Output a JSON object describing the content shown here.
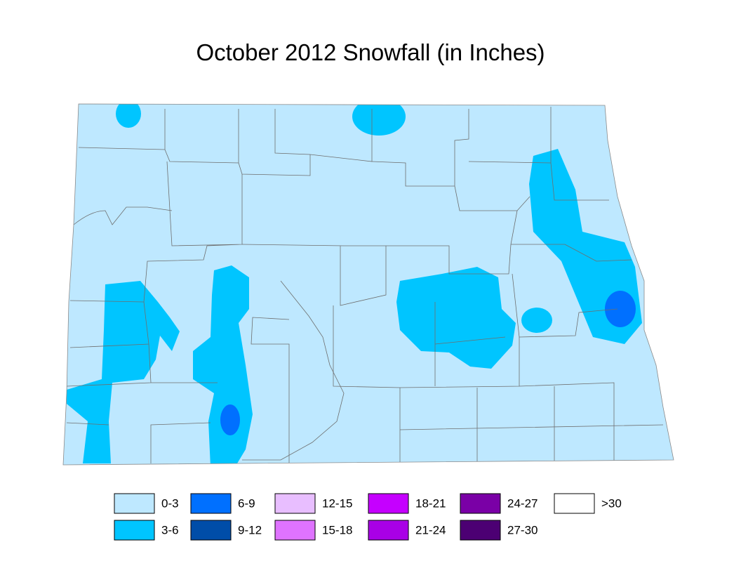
{
  "title": "October 2012 Snowfall (in Inches)",
  "legend": [
    {
      "label": "0-3",
      "color": "#bee8ff"
    },
    {
      "label": "3-6",
      "color": "#00c5ff"
    },
    {
      "label": "6-9",
      "color": "#0070ff"
    },
    {
      "label": "9-12",
      "color": "#004da8"
    },
    {
      "label": "12-15",
      "color": "#e8beff"
    },
    {
      "label": "15-18",
      "color": "#df73ff"
    },
    {
      "label": "18-21",
      "color": "#c500ff"
    },
    {
      "label": "21-24",
      "color": "#a900e6"
    },
    {
      "label": "24-27",
      "color": "#7a00a6"
    },
    {
      "label": "27-30",
      "color": "#4c0073"
    },
    {
      "label": ">30",
      "color": "#ffffff"
    }
  ]
}
